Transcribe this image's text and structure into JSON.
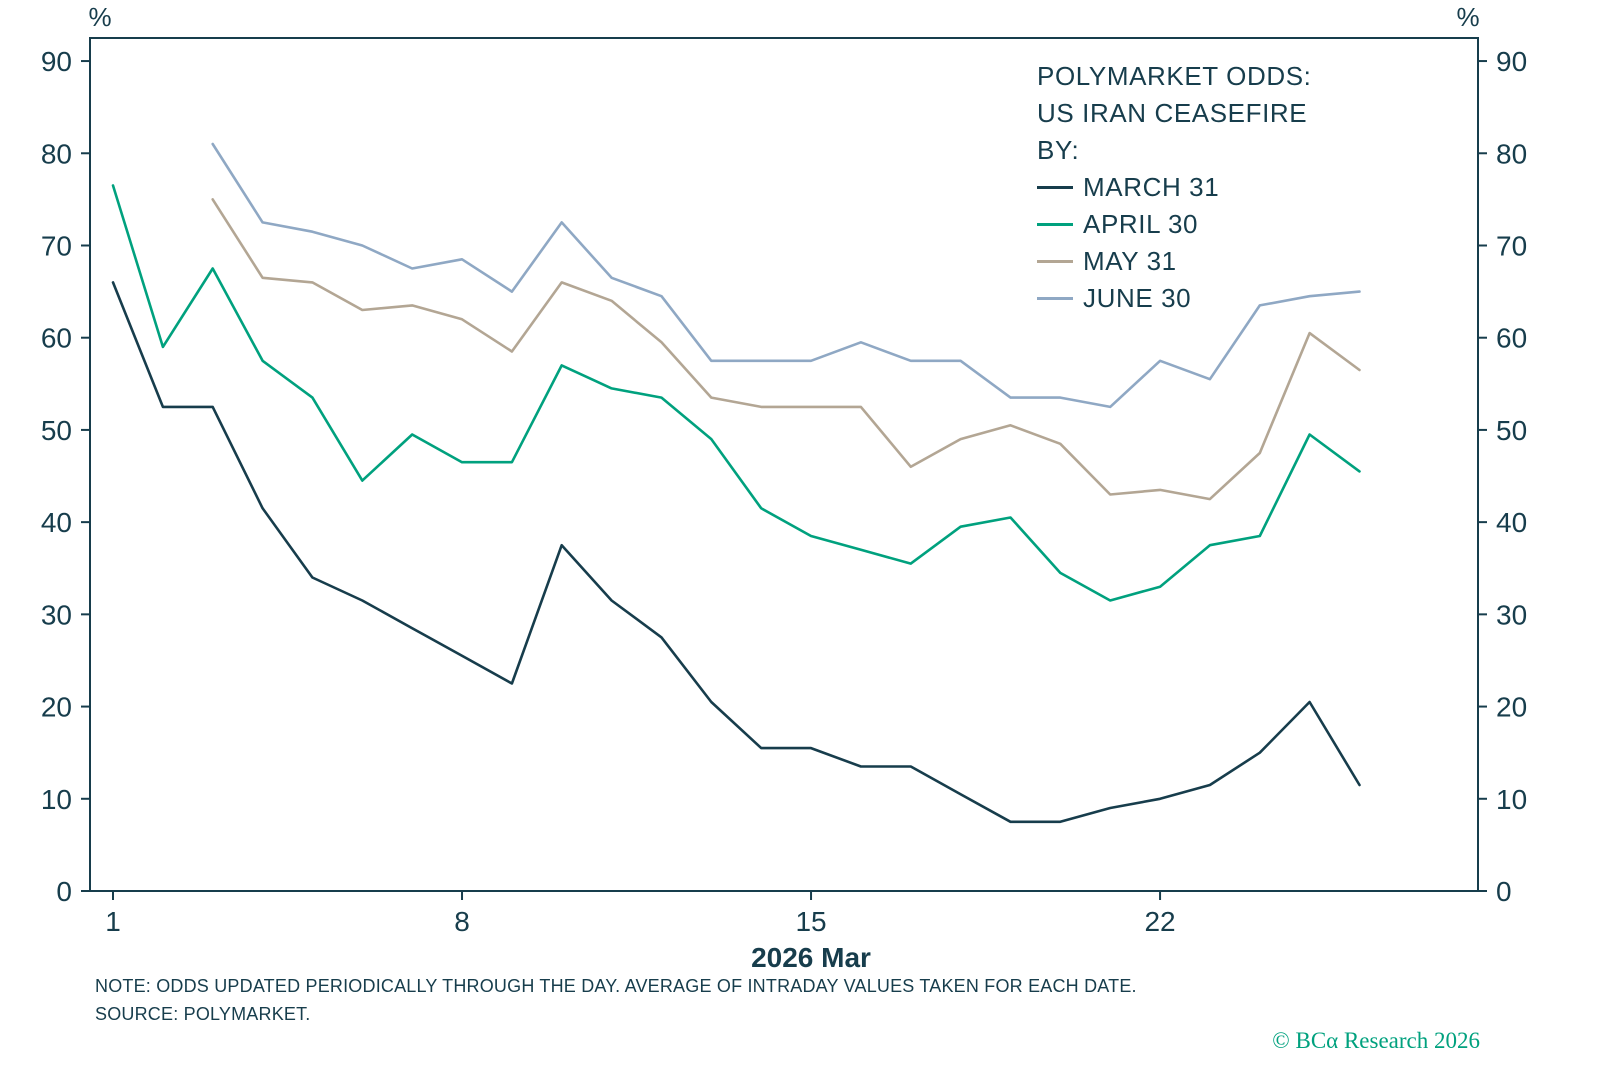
{
  "chart_data": {
    "type": "line",
    "title": "POLYMARKET ODDS: US IRAN CEASEFIRE BY:",
    "x_axis": {
      "label": "2026 Mar",
      "tick_values": [
        1,
        8,
        15,
        22
      ],
      "range_days": [
        1,
        26
      ]
    },
    "y_axis": {
      "label": "%",
      "min": 0,
      "max": 90,
      "tick_step": 10,
      "top_value": 92.5,
      "sides": "both"
    },
    "grid": "off",
    "legend_position": "top-right",
    "series": [
      {
        "name": "MARCH 31",
        "color": "#173d4c",
        "start_day": 1,
        "values": [
          66,
          52.5,
          52.5,
          41.5,
          34,
          31.5,
          28.5,
          25.5,
          22.5,
          37.5,
          31.5,
          27.5,
          20.5,
          15.5,
          15.5,
          13.5,
          13.5,
          10.5,
          7.5,
          7.5,
          9,
          10,
          11.5,
          15,
          20.5,
          11.5
        ]
      },
      {
        "name": "APRIL 30",
        "color": "#00a17e",
        "start_day": 1,
        "values": [
          76.5,
          59,
          67.5,
          57.5,
          53.5,
          44.5,
          49.5,
          46.5,
          46.5,
          57,
          54.5,
          53.5,
          49,
          41.5,
          38.5,
          37,
          35.5,
          39.5,
          40.5,
          34.5,
          31.5,
          33,
          37.5,
          38.5,
          49.5,
          45.5
        ]
      },
      {
        "name": "MAY 31",
        "color": "#b3a694",
        "start_day": 3,
        "values": [
          75,
          66.5,
          66,
          63,
          63.5,
          62,
          58.5,
          66,
          64,
          59.5,
          53.5,
          52.5,
          52.5,
          52.5,
          46,
          49,
          50.5,
          48.5,
          43,
          43.5,
          42.5,
          47.5,
          60.5,
          56.5
        ]
      },
      {
        "name": "JUNE 30",
        "color": "#8fa8c4",
        "start_day": 3,
        "values": [
          81,
          72.5,
          71.5,
          70,
          67.5,
          68.5,
          65,
          72.5,
          66.5,
          64.5,
          57.5,
          57.5,
          57.5,
          59.5,
          57.5,
          57.5,
          53.5,
          53.5,
          52.5,
          57.5,
          55.5,
          63.5,
          64.5,
          65
        ]
      }
    ]
  },
  "legend": {
    "title_lines": [
      "POLYMARKET ODDS:",
      "US IRAN CEASEFIRE",
      "BY:"
    ]
  },
  "footnote": {
    "line1": "NOTE: ODDS UPDATED PERIODICALLY THROUGH THE DAY. AVERAGE OF INTRADAY VALUES TAKEN FOR EACH DATE.",
    "line2": "SOURCE: POLYMARKET."
  },
  "branding": {
    "copyright": "© BCα Research 2026"
  }
}
